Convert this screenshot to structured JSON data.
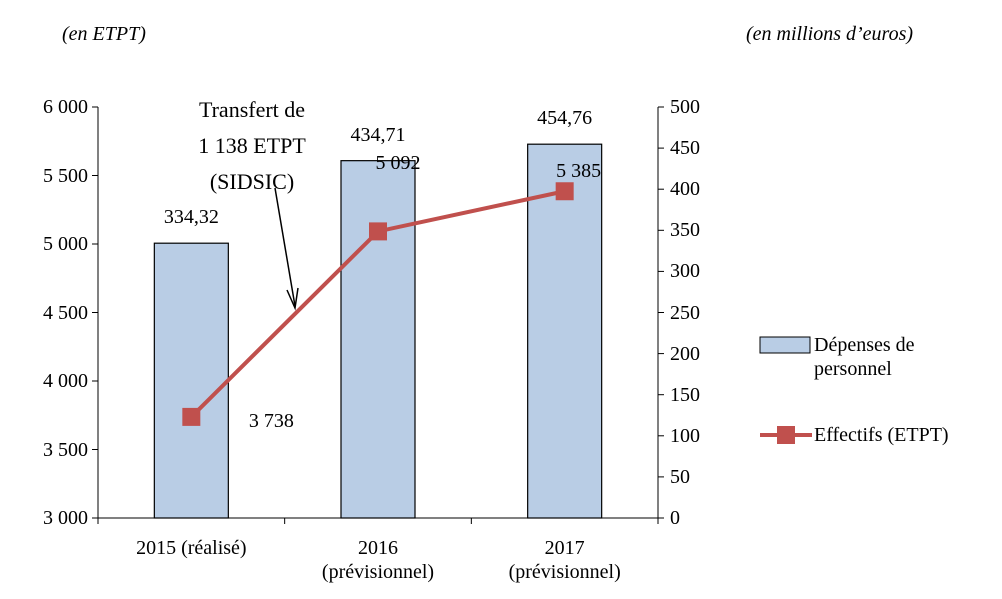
{
  "chart_data": {
    "type": "bar_line",
    "y_unit_label": "(en ETPT)",
    "y2_unit_label": "(en millions d’euros)",
    "annotation": "Transfert de\n1 138 ETPT\n(SIDSIC)",
    "categories": [
      "2015 (réalisé)",
      "2016\n(prévisionnel)",
      "2017\n(prévisionnel)"
    ],
    "series": [
      {
        "name": "Dépenses de personnel",
        "type": "bar",
        "axis": "y2",
        "color": "#b9cde5",
        "values": [
          334.32,
          434.71,
          454.76
        ],
        "value_labels": [
          "334,32",
          "434,71",
          "454,76"
        ]
      },
      {
        "name": "Effectifs (ETPT)",
        "type": "line",
        "axis": "y",
        "color": "#c0504d",
        "values": [
          3738,
          5092,
          5385
        ],
        "value_labels": [
          "3 738",
          "5 092",
          "5 385"
        ]
      }
    ],
    "ylim": [
      3000,
      6000
    ],
    "yticks": [
      {
        "value": 3000,
        "label": "3 000"
      },
      {
        "value": 3500,
        "label": "3 500"
      },
      {
        "value": 4000,
        "label": "4 000"
      },
      {
        "value": 4500,
        "label": "4 500"
      },
      {
        "value": 5000,
        "label": "5 000"
      },
      {
        "value": 5500,
        "label": "5 500"
      },
      {
        "value": 6000,
        "label": "6 000"
      }
    ],
    "y2lim": [
      0,
      500
    ],
    "y2ticks": [
      0,
      50,
      100,
      150,
      200,
      250,
      300,
      350,
      400,
      450,
      500
    ],
    "legend": "right"
  }
}
